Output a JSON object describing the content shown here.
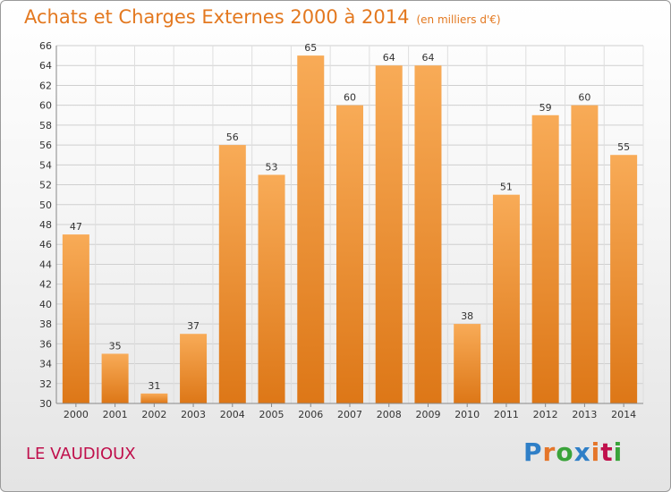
{
  "header": {
    "title": "Achats et Charges Externes 2000 à 2014",
    "unit": "(en milliers d'€)"
  },
  "footer": {
    "place": "LE VAUDIOUX",
    "logo_text": "Proxiti"
  },
  "colors": {
    "title": "#e3781f",
    "place": "#c0104c",
    "bar_light": "#f7a54e",
    "bar_dark": "#e07b1c",
    "logo": [
      "#2f7fc7",
      "#e5762a",
      "#3aa33a",
      "#2f7fc7",
      "#e5762a",
      "#c0104c",
      "#3aa33a"
    ]
  },
  "chart_data": {
    "type": "bar",
    "title": "Achats et Charges Externes 2000 à 2014",
    "categories": [
      "2000",
      "2001",
      "2002",
      "2003",
      "2004",
      "2005",
      "2006",
      "2007",
      "2008",
      "2009",
      "2010",
      "2011",
      "2012",
      "2013",
      "2014"
    ],
    "values": [
      47,
      35,
      31,
      37,
      56,
      53,
      65,
      60,
      64,
      64,
      38,
      51,
      59,
      60,
      55
    ],
    "yticks": [
      30,
      32,
      34,
      36,
      38,
      40,
      42,
      44,
      46,
      48,
      50,
      52,
      54,
      56,
      58,
      60,
      62,
      64,
      66
    ],
    "ylim": [
      30,
      66
    ],
    "grid": true,
    "legend": false
  }
}
